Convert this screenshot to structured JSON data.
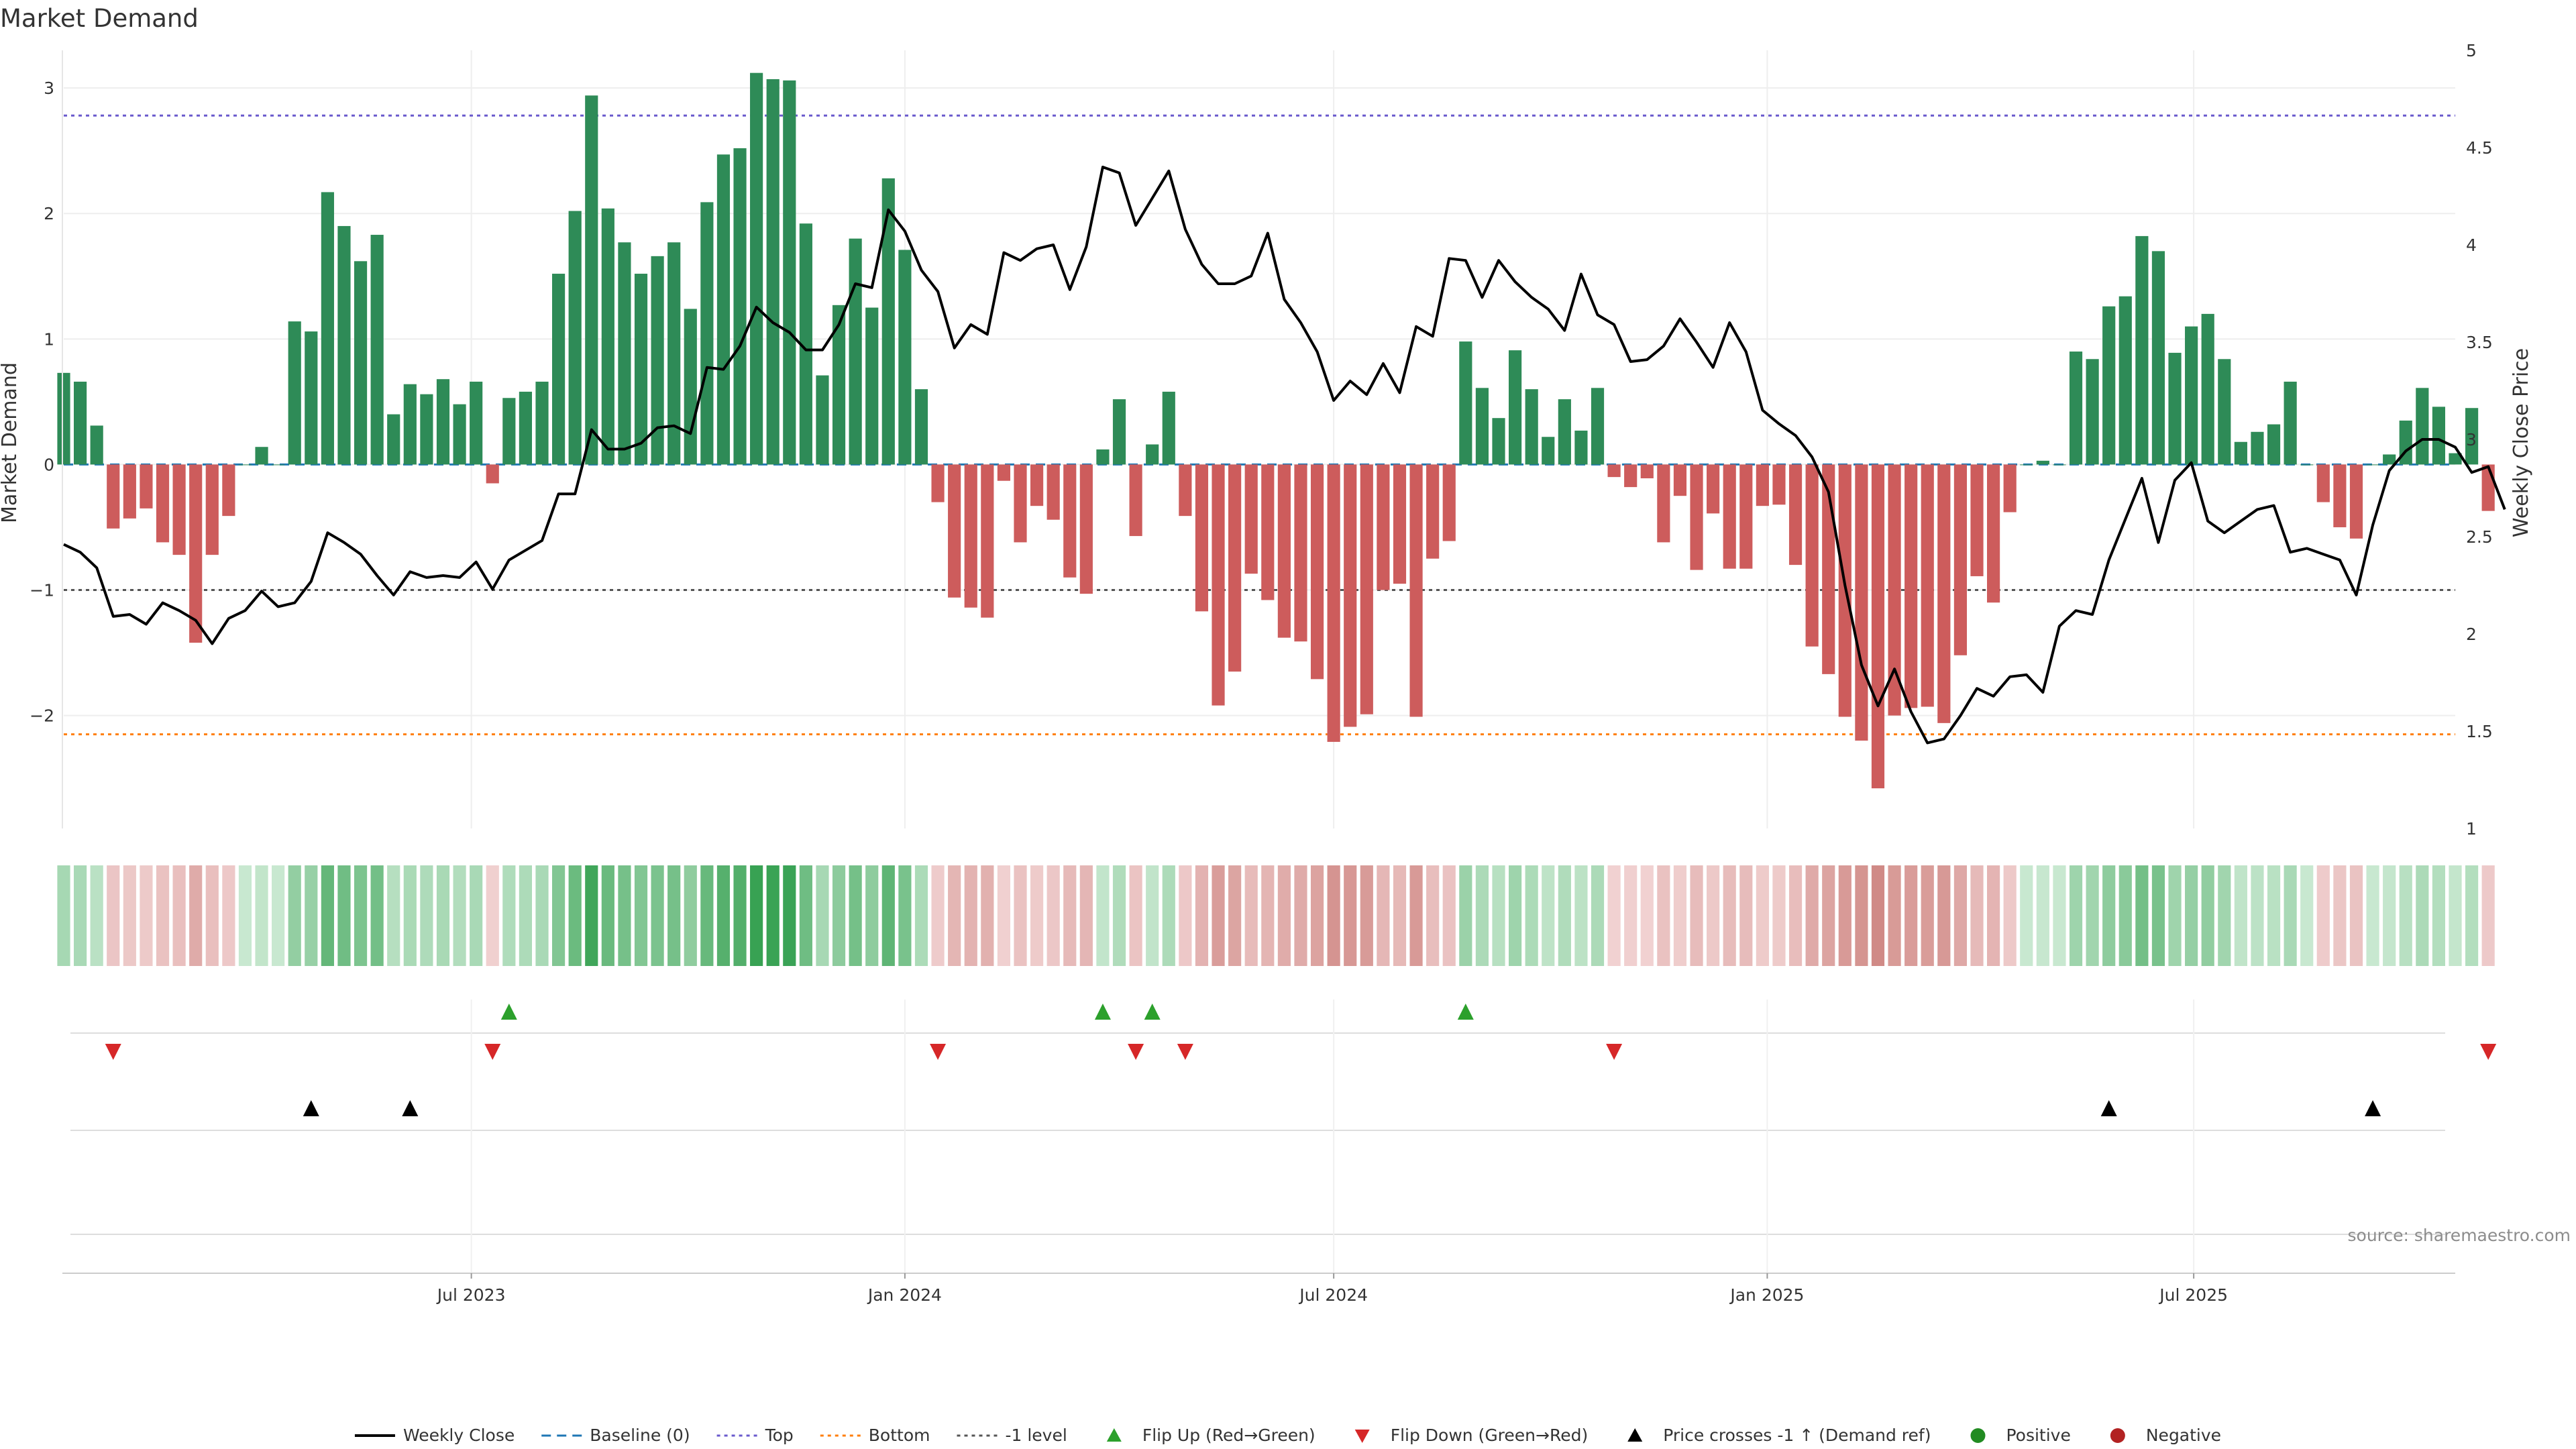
{
  "chart_data": {
    "type": "bar",
    "title": "Market Demand",
    "ylabel": "Market Demand",
    "y2label": "Weekly Close Price",
    "source": "source: sharemaestro.com",
    "ylim": [
      -2.9,
      3.3
    ],
    "y2lim": [
      1.0,
      5.0
    ],
    "y_ticks": [
      -2,
      -1,
      0,
      1,
      2,
      3
    ],
    "y2_ticks": [
      1,
      1.5,
      2,
      2.5,
      3,
      3.5,
      4,
      4.5,
      5
    ],
    "x_range": [
      "2023-01-09",
      "2025-10-20"
    ],
    "x_ticks": [
      {
        "date": "2023-07-01",
        "label": "Jul 2023"
      },
      {
        "date": "2024-01-01",
        "label": "Jan 2024"
      },
      {
        "date": "2024-07-01",
        "label": "Jul 2024"
      },
      {
        "date": "2025-01-01",
        "label": "Jan 2025"
      },
      {
        "date": "2025-07-01",
        "label": "Jul 2025"
      }
    ],
    "start_week": "2023-01-09",
    "reference_lines": {
      "top": 2.78,
      "bottom": -2.15,
      "minus_one": -1.0,
      "baseline": 0
    },
    "demand": [
      0.73,
      0.66,
      0.31,
      -0.51,
      -0.43,
      -0.35,
      -0.62,
      -0.72,
      -1.42,
      -0.72,
      -0.41,
      0.0,
      0.14,
      0.0,
      1.14,
      1.06,
      2.17,
      1.9,
      1.62,
      1.83,
      0.4,
      0.64,
      0.56,
      0.68,
      0.48,
      0.66,
      -0.15,
      0.53,
      0.58,
      0.66,
      1.52,
      2.02,
      2.94,
      2.04,
      1.77,
      1.52,
      1.66,
      1.77,
      1.24,
      2.09,
      2.47,
      2.52,
      3.12,
      3.07,
      3.06,
      1.92,
      0.71,
      1.27,
      1.8,
      1.25,
      2.28,
      1.71,
      0.6,
      -0.3,
      -1.06,
      -1.14,
      -1.22,
      -0.13,
      -0.62,
      -0.33,
      -0.44,
      -0.9,
      -1.03,
      0.12,
      0.52,
      -0.57,
      0.16,
      0.58,
      -0.41,
      -1.17,
      -1.92,
      -1.65,
      -0.87,
      -1.08,
      -1.38,
      -1.41,
      -1.71,
      -2.21,
      -2.09,
      -1.99,
      -1.0,
      -0.95,
      -2.01,
      -0.75,
      -0.61,
      0.98,
      0.61,
      0.37,
      0.91,
      0.6,
      0.22,
      0.52,
      0.27,
      0.61,
      -0.1,
      -0.18,
      -0.11,
      -0.62,
      -0.25,
      -0.84,
      -0.39,
      -0.83,
      -0.83,
      -0.33,
      -0.32,
      -0.8,
      -1.45,
      -1.67,
      -2.01,
      -2.2,
      -2.58,
      -2.0,
      -1.94,
      -1.93,
      -2.06,
      -1.52,
      -0.89,
      -1.1,
      -0.38,
      0.0,
      0.03,
      0.0,
      0.9,
      0.84,
      1.26,
      1.34,
      1.82,
      1.7,
      0.89,
      1.1,
      1.2,
      0.84,
      0.18,
      0.26,
      0.32,
      0.66,
      0.0,
      -0.3,
      -0.5,
      -0.59,
      0.0,
      0.08,
      0.35,
      0.61,
      0.46,
      0.09,
      0.45,
      -0.37
    ],
    "price": [
      2.46,
      2.42,
      2.34,
      2.09,
      2.1,
      2.05,
      2.16,
      2.12,
      2.07,
      1.95,
      2.08,
      2.12,
      2.22,
      2.14,
      2.16,
      2.27,
      2.52,
      2.47,
      2.41,
      2.3,
      2.2,
      2.32,
      2.29,
      2.3,
      2.29,
      2.37,
      2.23,
      2.38,
      2.43,
      2.48,
      2.72,
      2.72,
      3.05,
      2.95,
      2.95,
      2.98,
      3.06,
      3.07,
      3.03,
      3.37,
      3.36,
      3.48,
      3.68,
      3.6,
      3.55,
      3.46,
      3.46,
      3.59,
      3.8,
      3.78,
      4.18,
      4.07,
      3.87,
      3.76,
      3.47,
      3.59,
      3.54,
      3.96,
      3.92,
      3.98,
      4.0,
      3.77,
      3.99,
      4.4,
      4.37,
      4.1,
      4.24,
      4.38,
      4.08,
      3.9,
      3.8,
      3.8,
      3.84,
      4.06,
      3.72,
      3.6,
      3.45,
      3.2,
      3.3,
      3.23,
      3.39,
      3.24,
      3.58,
      3.53,
      3.93,
      3.92,
      3.73,
      3.92,
      3.81,
      3.73,
      3.67,
      3.56,
      3.85,
      3.64,
      3.59,
      3.4,
      3.41,
      3.48,
      3.62,
      3.5,
      3.37,
      3.6,
      3.45,
      3.15,
      3.08,
      3.02,
      2.91,
      2.73,
      2.25,
      1.84,
      1.63,
      1.82,
      1.6,
      1.44,
      1.46,
      1.58,
      1.72,
      1.68,
      1.78,
      1.79,
      1.7,
      2.04,
      2.12,
      2.1,
      2.38,
      2.59,
      2.8,
      2.47,
      2.79,
      2.88,
      2.58,
      2.52,
      2.58,
      2.64,
      2.66,
      2.42,
      2.44,
      2.41,
      2.38,
      2.2,
      2.56,
      2.84,
      2.94,
      3.0,
      3.0,
      2.96,
      2.83,
      2.86,
      2.64
    ]
  },
  "legend": [
    {
      "label": "Weekly Close",
      "kind": "line",
      "color": "#000000"
    },
    {
      "label": "Baseline (0)",
      "kind": "dash",
      "color": "#1f77b4"
    },
    {
      "label": "Top",
      "kind": "dot",
      "color": "#6a5acd"
    },
    {
      "label": "Bottom",
      "kind": "dot",
      "color": "#ff7f0e"
    },
    {
      "label": "-1 level",
      "kind": "dot",
      "color": "#555555"
    },
    {
      "label": "Flip Up (Red→Green)",
      "kind": "tri-up",
      "color": "#2ca02c"
    },
    {
      "label": "Flip Down (Green→Red)",
      "kind": "tri-down",
      "color": "#d62728"
    },
    {
      "label": "Price crosses -1 ↑ (Demand ref)",
      "kind": "tri-up",
      "color": "#000000"
    },
    {
      "label": "Positive",
      "kind": "dot-marker",
      "color": "#228b22"
    },
    {
      "label": "Negative",
      "kind": "dot-marker",
      "color": "#b22222"
    }
  ],
  "colors": {
    "positive_bar": "#2e8b57",
    "negative_bar": "#cd5c5c",
    "price_line": "#000000",
    "flip_up": "#2ca02c",
    "flip_down": "#d62728",
    "cross_marker": "#000000",
    "grid": "#eeeeee"
  }
}
